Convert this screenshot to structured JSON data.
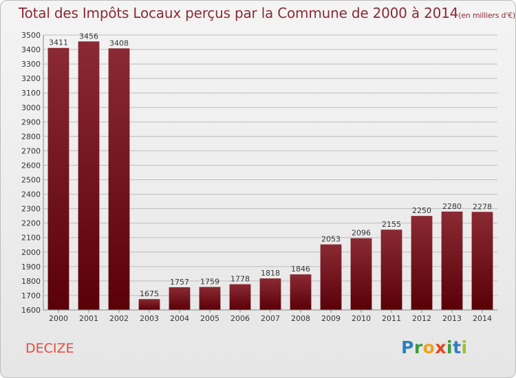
{
  "title": "Total des Impôts Locaux perçus par la Commune de 2000 à 2014",
  "title_unit": "(en milliers d'€)",
  "commune": "DECIZE",
  "logo": {
    "letters": [
      "P",
      "r",
      "o",
      "x",
      "i",
      "t",
      "i"
    ],
    "colors": [
      "#2f7fc1",
      "#3a9a3f",
      "#f0a020",
      "#e6451f",
      "#3a9a3f",
      "#2f7fc1",
      "#9bbf2a"
    ]
  },
  "colors": {
    "bar_top": "#8a2a33",
    "bar_bottom": "#5a0008",
    "title": "#8a2a33",
    "commune": "#e8483b",
    "grid": "#bdbdbd",
    "axis_text": "#333333"
  },
  "chart_data": {
    "type": "bar",
    "title": "Total des Impôts Locaux perçus par la Commune de 2000 à 2014",
    "categories": [
      "2000",
      "2001",
      "2002",
      "2003",
      "2004",
      "2005",
      "2006",
      "2007",
      "2008",
      "2009",
      "2010",
      "2011",
      "2012",
      "2013",
      "2014"
    ],
    "values": [
      3411,
      3456,
      3408,
      1675,
      1757,
      1759,
      1778,
      1818,
      1846,
      2053,
      2096,
      2155,
      2250,
      2280,
      2278
    ],
    "ylim": [
      1600,
      3500
    ],
    "yticks": [
      1600,
      1700,
      1800,
      1900,
      2000,
      2100,
      2200,
      2300,
      2400,
      2500,
      2600,
      2700,
      2800,
      2900,
      3000,
      3100,
      3200,
      3300,
      3400,
      3500
    ],
    "grid": true,
    "data_labels": true
  }
}
